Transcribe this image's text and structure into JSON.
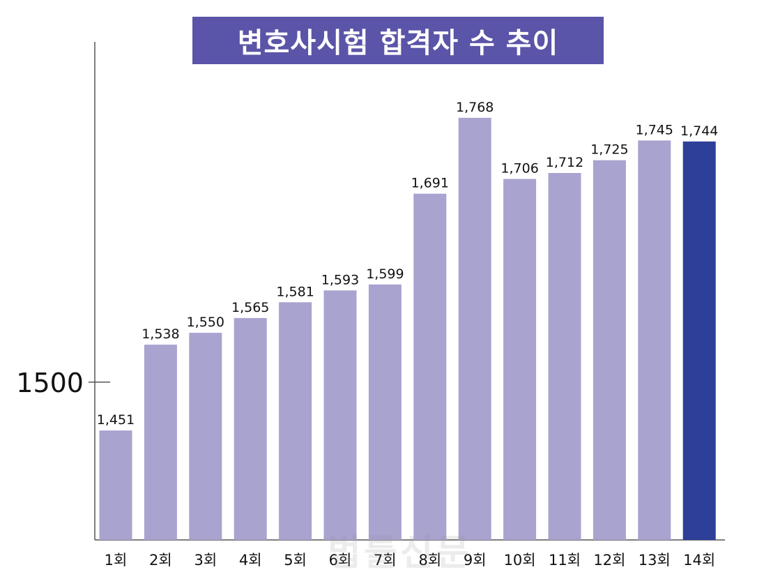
{
  "chart_data": {
    "type": "bar",
    "title": "변호사시험 합격자 수 추이",
    "xlabel": "",
    "ylabel": "",
    "categories": [
      "1회",
      "2회",
      "3회",
      "4회",
      "5회",
      "6회",
      "7회",
      "8회",
      "9회",
      "10회",
      "11회",
      "12회",
      "13회",
      "14회"
    ],
    "values": [
      1451,
      1538,
      1550,
      1565,
      1581,
      1593,
      1599,
      1691,
      1768,
      1706,
      1712,
      1725,
      1745,
      1744
    ],
    "data_labels": [
      "1,451",
      "1,538",
      "1,550",
      "1,565",
      "1,581",
      "1,593",
      "1,599",
      "1,691",
      "1,768",
      "1,706",
      "1,712",
      "1,725",
      "1,745",
      "1,744"
    ],
    "y_ticks": [
      {
        "value": 1500,
        "label": "1500"
      }
    ],
    "ylim": [
      1340,
      1845
    ],
    "grid": false,
    "legend": "none",
    "colors": {
      "bar": "#a8a3cf",
      "highlight": "#2d3f98",
      "title_bg": "#5a55a8",
      "axis": "#555555"
    },
    "highlight_index": 13
  },
  "watermark": "법률신문"
}
